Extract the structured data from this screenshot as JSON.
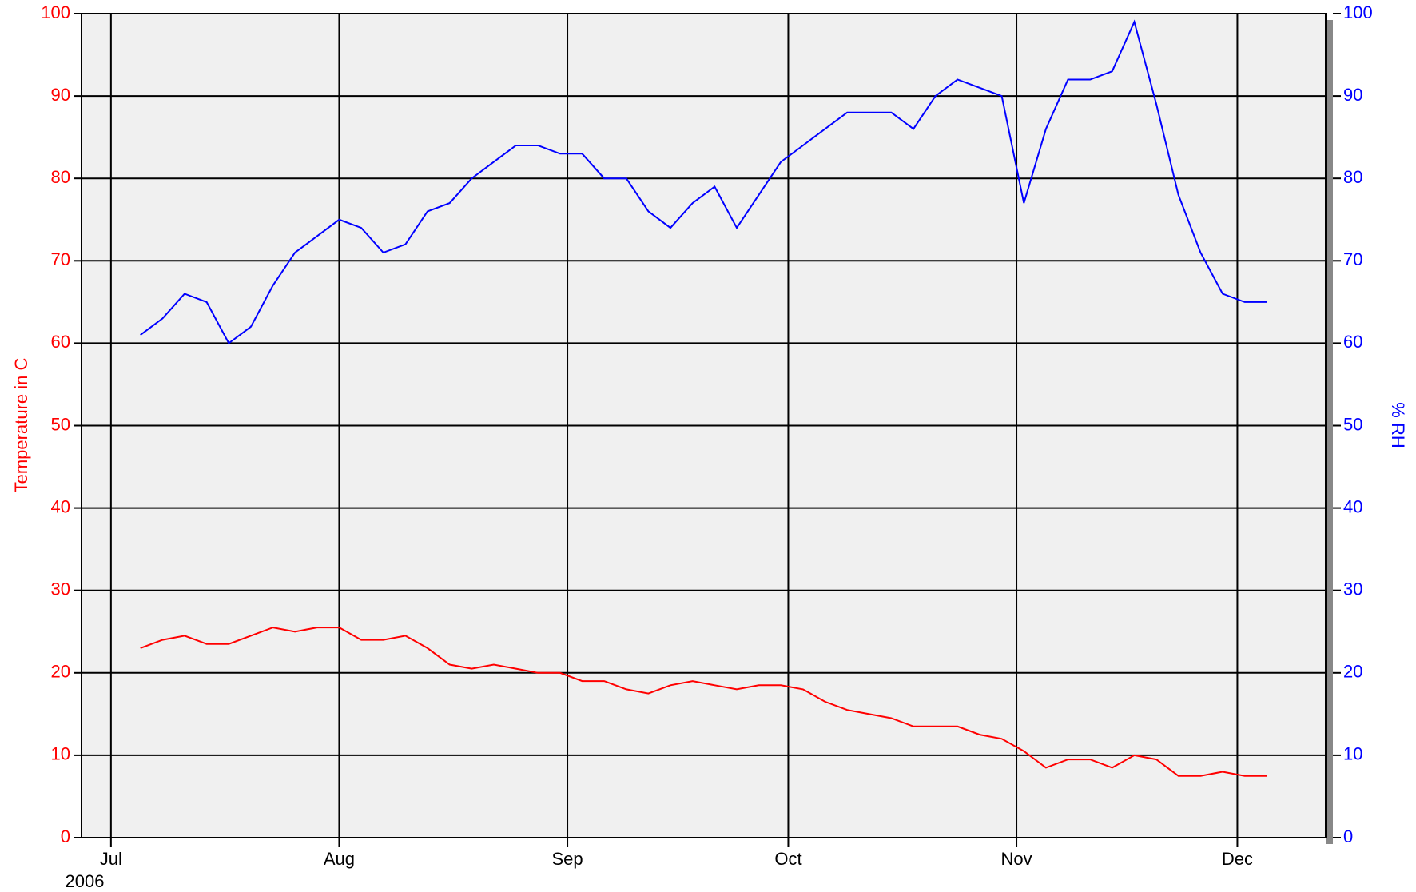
{
  "chart_data": {
    "type": "line",
    "ylabel": "Temperature in C",
    "y2label": "% RH",
    "year_label": "2006",
    "x": [
      "2006-07-05",
      "2006-07-08",
      "2006-07-11",
      "2006-07-14",
      "2006-07-17",
      "2006-07-20",
      "2006-07-23",
      "2006-07-26",
      "2006-07-29",
      "2006-08-01",
      "2006-08-04",
      "2006-08-07",
      "2006-08-10",
      "2006-08-13",
      "2006-08-16",
      "2006-08-19",
      "2006-08-22",
      "2006-08-25",
      "2006-08-28",
      "2006-08-31",
      "2006-09-03",
      "2006-09-06",
      "2006-09-09",
      "2006-09-12",
      "2006-09-15",
      "2006-09-18",
      "2006-09-21",
      "2006-09-24",
      "2006-09-27",
      "2006-09-30",
      "2006-10-03",
      "2006-10-06",
      "2006-10-09",
      "2006-10-12",
      "2006-10-15",
      "2006-10-18",
      "2006-10-21",
      "2006-10-24",
      "2006-10-27",
      "2006-10-30",
      "2006-11-02",
      "2006-11-05",
      "2006-11-08",
      "2006-11-11",
      "2006-11-14",
      "2006-11-17",
      "2006-11-20",
      "2006-11-23",
      "2006-11-26",
      "2006-11-29",
      "2006-12-02",
      "2006-12-05"
    ],
    "series": [
      {
        "name": "Temperature",
        "color": "#ff0000",
        "axis": "y",
        "values": [
          23,
          24,
          24.5,
          23.5,
          23.5,
          24.5,
          25.5,
          25,
          25.5,
          25.5,
          24,
          24,
          24.5,
          23,
          21,
          20.5,
          21,
          20.5,
          20,
          20,
          19,
          19,
          18,
          17.5,
          18.5,
          19,
          18.5,
          18,
          18.5,
          18.5,
          18,
          16.5,
          15.5,
          15,
          14.5,
          13.5,
          13.5,
          13.5,
          12.5,
          12,
          10.5,
          8.5,
          9.5,
          9.5,
          8.5,
          10,
          9.5,
          7.5,
          7.5,
          8,
          7.5,
          7.5
        ]
      },
      {
        "name": "% RH",
        "color": "#0000ff",
        "axis": "y2",
        "values": [
          61,
          63,
          66,
          65,
          60,
          62,
          67,
          71,
          73,
          75,
          74,
          71,
          72,
          76,
          77,
          80,
          82,
          84,
          84,
          83,
          83,
          80,
          80,
          76,
          74,
          77,
          79,
          74,
          78,
          82,
          84,
          86,
          88,
          88,
          88,
          86,
          90,
          92,
          91,
          90,
          77,
          86,
          92,
          92,
          93,
          99,
          89,
          78,
          71,
          66,
          65,
          65
        ]
      }
    ],
    "xlim": [
      "2006-06-27",
      "2006-12-13"
    ],
    "xticks": [
      {
        "value": "2006-07-01",
        "label": "Jul"
      },
      {
        "value": "2006-08-01",
        "label": "Aug"
      },
      {
        "value": "2006-09-01",
        "label": "Sep"
      },
      {
        "value": "2006-10-01",
        "label": "Oct"
      },
      {
        "value": "2006-11-01",
        "label": "Nov"
      },
      {
        "value": "2006-12-01",
        "label": "Dec"
      }
    ],
    "ylim": [
      0,
      100
    ],
    "yticks": [
      0,
      10,
      20,
      30,
      40,
      50,
      60,
      70,
      80,
      90,
      100
    ],
    "y2lim": [
      0,
      100
    ],
    "y2ticks": [
      0,
      10,
      20,
      30,
      40,
      50,
      60,
      70,
      80,
      90,
      100
    ],
    "grid": true,
    "plot_background": "#f0f0f0"
  }
}
